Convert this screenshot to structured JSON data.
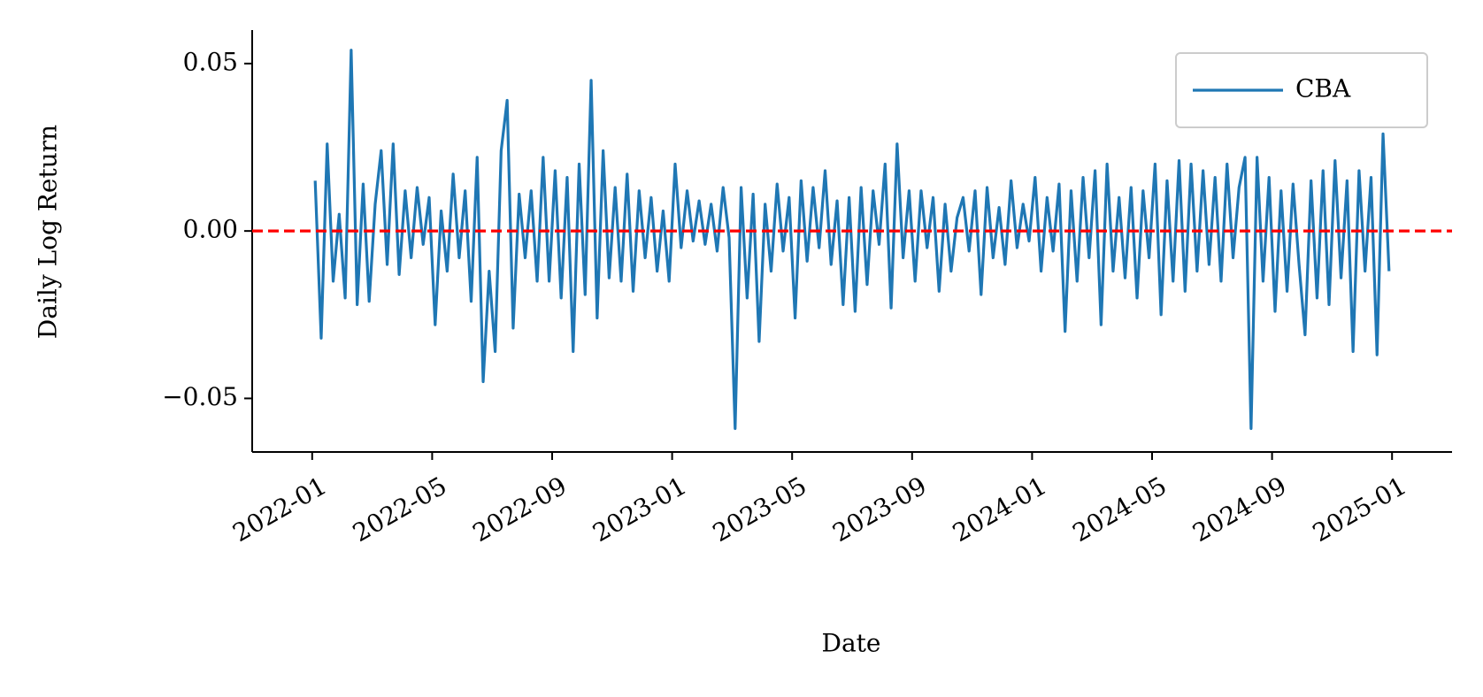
{
  "chart_data": {
    "type": "line",
    "x_label": "Date",
    "y_label": "Daily Log Return",
    "x": [
      "2022-01",
      "2022-01",
      "2022-01",
      "2022-01",
      "2022-01",
      "2022-02",
      "2022-02",
      "2022-02",
      "2022-02",
      "2022-02",
      "2022-03",
      "2022-03",
      "2022-03",
      "2022-03",
      "2022-03",
      "2022-04",
      "2022-04",
      "2022-04",
      "2022-04",
      "2022-04",
      "2022-05",
      "2022-05",
      "2022-05",
      "2022-05",
      "2022-05",
      "2022-06",
      "2022-06",
      "2022-06",
      "2022-06",
      "2022-06",
      "2022-07",
      "2022-07",
      "2022-07",
      "2022-07",
      "2022-07",
      "2022-08",
      "2022-08",
      "2022-08",
      "2022-08",
      "2022-08",
      "2022-09",
      "2022-09",
      "2022-09",
      "2022-09",
      "2022-09",
      "2022-10",
      "2022-10",
      "2022-10",
      "2022-10",
      "2022-10",
      "2022-11",
      "2022-11",
      "2022-11",
      "2022-11",
      "2022-11",
      "2022-12",
      "2022-12",
      "2022-12",
      "2022-12",
      "2022-12",
      "2023-01",
      "2023-01",
      "2023-01",
      "2023-01",
      "2023-01",
      "2023-02",
      "2023-02",
      "2023-02",
      "2023-02",
      "2023-02",
      "2023-03",
      "2023-03",
      "2023-03",
      "2023-03",
      "2023-03",
      "2023-04",
      "2023-04",
      "2023-04",
      "2023-04",
      "2023-04",
      "2023-05",
      "2023-05",
      "2023-05",
      "2023-05",
      "2023-05",
      "2023-06",
      "2023-06",
      "2023-06",
      "2023-06",
      "2023-06",
      "2023-07",
      "2023-07",
      "2023-07",
      "2023-07",
      "2023-07",
      "2023-08",
      "2023-08",
      "2023-08",
      "2023-08",
      "2023-08",
      "2023-09",
      "2023-09",
      "2023-09",
      "2023-09",
      "2023-09",
      "2023-10",
      "2023-10",
      "2023-10",
      "2023-10",
      "2023-10",
      "2023-11",
      "2023-11",
      "2023-11",
      "2023-11",
      "2023-11",
      "2023-12",
      "2023-12",
      "2023-12",
      "2023-12",
      "2023-12",
      "2024-01",
      "2024-01",
      "2024-01",
      "2024-01",
      "2024-01",
      "2024-02",
      "2024-02",
      "2024-02",
      "2024-02",
      "2024-02",
      "2024-03",
      "2024-03",
      "2024-03",
      "2024-03",
      "2024-03",
      "2024-04",
      "2024-04",
      "2024-04",
      "2024-04",
      "2024-04",
      "2024-05",
      "2024-05",
      "2024-05",
      "2024-05",
      "2024-05",
      "2024-06",
      "2024-06",
      "2024-06",
      "2024-06",
      "2024-06",
      "2024-07",
      "2024-07",
      "2024-07",
      "2024-07",
      "2024-07",
      "2024-08",
      "2024-08",
      "2024-08",
      "2024-08",
      "2024-08",
      "2024-09",
      "2024-09",
      "2024-09",
      "2024-09",
      "2024-09",
      "2024-10",
      "2024-10",
      "2024-10",
      "2024-10",
      "2024-10",
      "2024-11",
      "2024-11",
      "2024-11",
      "2024-11",
      "2024-11",
      "2024-12",
      "2024-12",
      "2024-12",
      "2024-12",
      "2024-12"
    ],
    "series": [
      {
        "name": "CBA",
        "color": "#1f77b4",
        "values": [
          0.015,
          -0.032,
          0.026,
          -0.015,
          0.005,
          -0.02,
          0.054,
          -0.022,
          0.014,
          -0.021,
          0.008,
          0.024,
          -0.01,
          0.026,
          -0.013,
          0.012,
          -0.008,
          0.013,
          -0.004,
          0.01,
          -0.028,
          0.006,
          -0.012,
          0.017,
          -0.008,
          0.012,
          -0.021,
          0.022,
          -0.045,
          -0.012,
          -0.036,
          0.024,
          0.039,
          -0.029,
          0.011,
          -0.008,
          0.012,
          -0.015,
          0.022,
          -0.015,
          0.018,
          -0.02,
          0.016,
          -0.036,
          0.02,
          -0.019,
          0.045,
          -0.026,
          0.024,
          -0.014,
          0.013,
          -0.015,
          0.017,
          -0.018,
          0.012,
          -0.008,
          0.01,
          -0.012,
          0.006,
          -0.015,
          0.02,
          -0.005,
          0.012,
          -0.003,
          0.009,
          -0.004,
          0.008,
          -0.006,
          0.013,
          -0.002,
          -0.059,
          0.013,
          -0.02,
          0.011,
          -0.033,
          0.008,
          -0.012,
          0.014,
          -0.006,
          0.01,
          -0.026,
          0.015,
          -0.009,
          0.013,
          -0.005,
          0.018,
          -0.01,
          0.009,
          -0.022,
          0.01,
          -0.024,
          0.013,
          -0.016,
          0.012,
          -0.004,
          0.02,
          -0.023,
          0.026,
          -0.008,
          0.012,
          -0.015,
          0.012,
          -0.005,
          0.01,
          -0.018,
          0.008,
          -0.012,
          0.004,
          0.01,
          -0.006,
          0.012,
          -0.019,
          0.013,
          -0.008,
          0.007,
          -0.01,
          0.015,
          -0.005,
          0.008,
          -0.003,
          0.016,
          -0.012,
          0.01,
          -0.006,
          0.014,
          -0.03,
          0.012,
          -0.015,
          0.016,
          -0.008,
          0.018,
          -0.028,
          0.02,
          -0.012,
          0.01,
          -0.014,
          0.013,
          -0.02,
          0.012,
          -0.008,
          0.02,
          -0.025,
          0.015,
          -0.015,
          0.021,
          -0.018,
          0.02,
          -0.012,
          0.018,
          -0.01,
          0.016,
          -0.015,
          0.02,
          -0.008,
          0.013,
          0.022,
          -0.059,
          0.022,
          -0.015,
          0.016,
          -0.024,
          0.012,
          -0.018,
          0.014,
          -0.01,
          -0.031,
          0.015,
          -0.02,
          0.018,
          -0.022,
          0.021,
          -0.014,
          0.015,
          -0.036,
          0.018,
          -0.012,
          0.016,
          -0.037,
          0.029,
          -0.012
        ]
      }
    ],
    "hline": {
      "value": 0,
      "color": "#ff0000"
    },
    "xlim": [
      "2021-11",
      "2025-03"
    ],
    "xticks": [
      "2022-01",
      "2022-05",
      "2022-09",
      "2023-01",
      "2023-05",
      "2023-09",
      "2024-01",
      "2024-05",
      "2024-09",
      "2025-01"
    ],
    "ylim": [
      -0.066,
      0.06
    ],
    "yticks": [
      {
        "value": -0.05,
        "label": "−0.05"
      },
      {
        "value": 0,
        "label": "0.00"
      },
      {
        "value": 0.05,
        "label": "0.05"
      }
    ],
    "legend": "upper right",
    "grid": false
  }
}
